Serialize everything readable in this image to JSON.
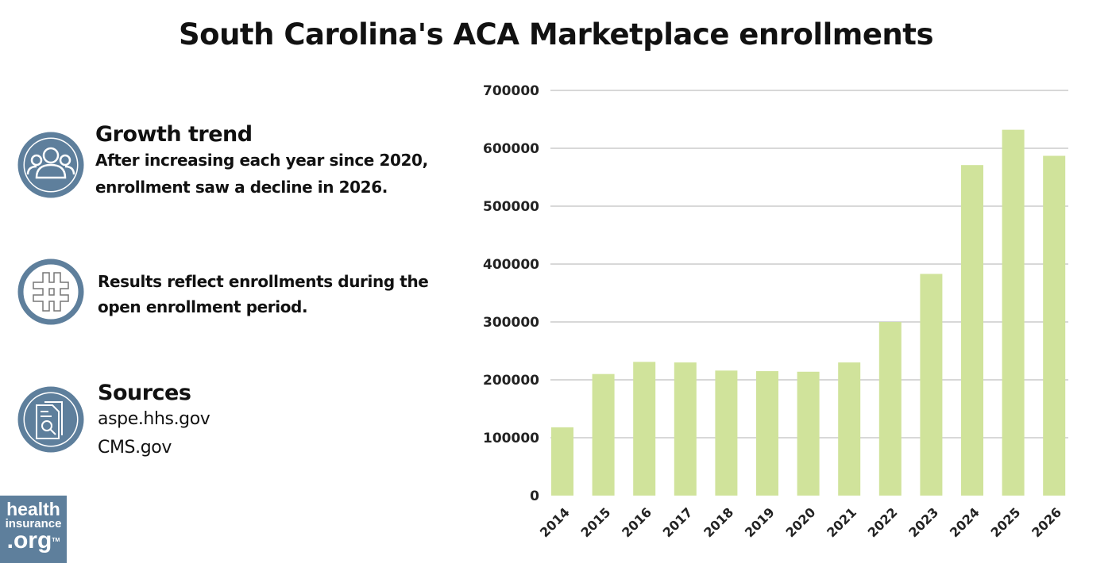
{
  "title": "South Carolina's ACA Marketplace enrollments",
  "panels": [
    {
      "icon": "people-group-icon",
      "heading": "Growth trend",
      "lines": [
        "After increasing each year since 2020,",
        "enrollment saw a decline in 2026."
      ]
    },
    {
      "icon": "hashtag-icon",
      "lines": [
        "Results reflect enrollments during the",
        "open enrollment period."
      ]
    },
    {
      "icon": "document-search-icon",
      "heading": "Sources",
      "sources": [
        "aspe.hhs.gov",
        "CMS.gov"
      ]
    }
  ],
  "logo": {
    "line1": "health",
    "line2": "insurance",
    "line3": ".org",
    "tm": "TM"
  },
  "colors": {
    "bar": "#d0e39b",
    "icon": "#5e7f9c",
    "grid": "#cccccc"
  },
  "chart_data": {
    "type": "bar",
    "categories": [
      "2014",
      "2015",
      "2016",
      "2017",
      "2018",
      "2019",
      "2020",
      "2021",
      "2022",
      "2023",
      "2024",
      "2025",
      "2026"
    ],
    "values": [
      118000,
      210000,
      231000,
      230000,
      216000,
      215000,
      214000,
      230000,
      300000,
      383000,
      571000,
      632000,
      587000
    ],
    "ylim": [
      0,
      700000
    ],
    "yticks": [
      "0",
      "100000",
      "200000",
      "300000",
      "400000",
      "500000",
      "600000",
      "700000"
    ],
    "grid": true
  }
}
